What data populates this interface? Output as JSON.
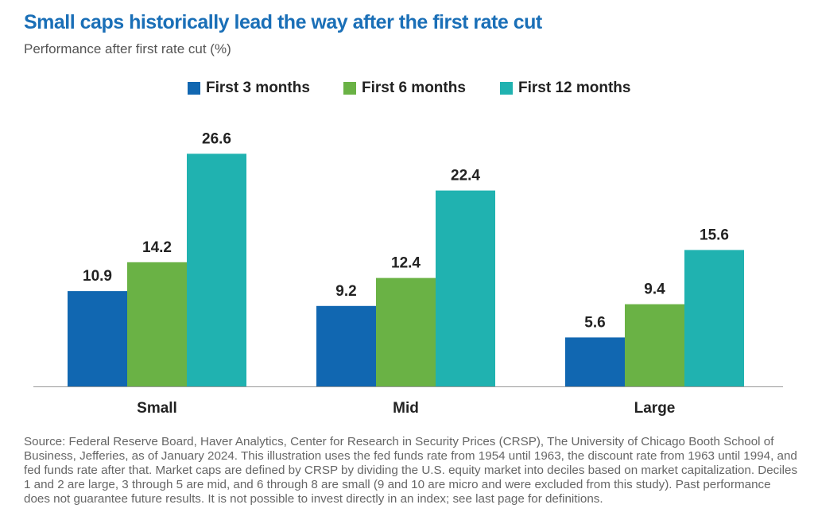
{
  "title": "Small caps historically lead the way after the first rate cut",
  "subtitle": "Performance after first rate cut (%)",
  "colors": {
    "title": "#1a6fb7",
    "series": [
      "#1167b1",
      "#6ab245",
      "#20b2b0"
    ],
    "axis": "#999999"
  },
  "legend": {
    "items": [
      {
        "label": "First 3 months",
        "color": "#1167b1"
      },
      {
        "label": "First 6 months",
        "color": "#6ab245"
      },
      {
        "label": "First 12 months",
        "color": "#20b2b0"
      }
    ]
  },
  "chart_data": {
    "type": "bar",
    "categories": [
      "Small",
      "Mid",
      "Large"
    ],
    "series": [
      {
        "name": "First 3 months",
        "values": [
          10.9,
          9.2,
          5.6
        ]
      },
      {
        "name": "First 6 months",
        "values": [
          14.2,
          12.4,
          9.4
        ]
      },
      {
        "name": "First 12 months",
        "values": [
          26.6,
          22.4,
          15.6
        ]
      }
    ],
    "value_labels": [
      [
        "10.9",
        "9.2",
        "5.6"
      ],
      [
        "14.2",
        "12.4",
        "9.4"
      ],
      [
        "26.6",
        "22.4",
        "15.6"
      ]
    ],
    "title": "Small caps historically lead the way after the first rate cut",
    "ylabel": "Performance after first rate cut (%)",
    "ylim": [
      0,
      30
    ],
    "grid": false,
    "legend_position": "top-center"
  },
  "source": "Source: Federal Reserve Board, Haver Analytics, Center for Research in Security Prices (CRSP), The University of Chicago Booth School of Business, Jefferies, as of January 2024. This illustration uses the fed funds rate from 1954 until 1963, the discount rate from 1963 until 1994, and fed funds rate after that. Market caps are defined by CRSP by dividing the U.S. equity market into deciles based on market capitalization. Deciles 1 and 2 are large, 3 through 5 are mid, and 6 through 8 are small (9 and 10 are micro and were excluded from this study). Past performance does not guarantee future results. It is not possible to invest directly in an index; see last page for definitions."
}
